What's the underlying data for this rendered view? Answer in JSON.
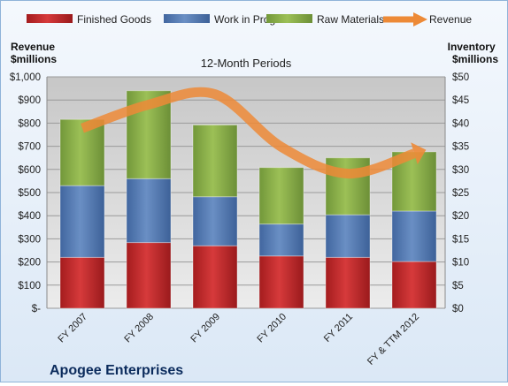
{
  "chart_data": {
    "type": "bar",
    "title": "12-Month Periods",
    "company": "Apogee Enterprises",
    "left_axis_title": [
      "Revenue",
      "$millions"
    ],
    "right_axis_title": [
      "Inventory",
      "$millions"
    ],
    "categories": [
      "FY 2007",
      "FY 2008",
      "FY 2009",
      "FY 2010",
      "FY 2011",
      "FY & TTM 2012"
    ],
    "left_ticks": [
      "$-",
      "$100",
      "$200",
      "$300",
      "$400",
      "$500",
      "$600",
      "$700",
      "$800",
      "$900",
      "$1,000"
    ],
    "right_ticks": [
      "$0",
      "$5",
      "$10",
      "$15",
      "$20",
      "$25",
      "$30",
      "$35",
      "$40",
      "$45",
      "$50"
    ],
    "left_ylim": [
      0,
      1000
    ],
    "right_ylim": [
      0,
      50
    ],
    "stacked": true,
    "series": [
      {
        "name": "Finished Goods",
        "axis": "right",
        "color": "#c0282b",
        "values": [
          11.0,
          14.2,
          13.5,
          11.3,
          11.0,
          10.1
        ]
      },
      {
        "name": "Work in Progress",
        "axis": "right",
        "color": "#5479b0",
        "values": [
          15.5,
          13.8,
          10.6,
          6.9,
          9.2,
          10.9
        ]
      },
      {
        "name": "Raw Materials",
        "axis": "right",
        "color": "#8aac48",
        "values": [
          14.3,
          19.0,
          15.5,
          12.2,
          12.3,
          12.8
        ]
      },
      {
        "name": "Revenue",
        "axis": "left",
        "type": "line",
        "color": "#ed8a37",
        "values": [
          778,
          880,
          925,
          697,
          582,
          669
        ]
      }
    ],
    "legend": "top",
    "grid": true
  }
}
